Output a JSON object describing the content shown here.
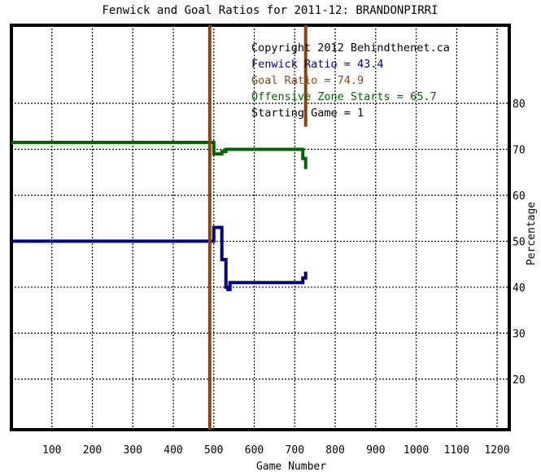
{
  "chart_data": {
    "type": "line",
    "title": "Fenwick and Goal Ratios for 2011-12: BRANDONPIRRI",
    "xlabel": "Game Number",
    "ylabel": "Percentage",
    "xlim": [
      0,
      1230
    ],
    "ylim": [
      9,
      97
    ],
    "xticks": [
      100,
      200,
      300,
      400,
      500,
      600,
      700,
      800,
      900,
      1000,
      1100,
      1200
    ],
    "yticks": [
      20,
      30,
      40,
      50,
      60,
      70,
      80
    ],
    "grid": true,
    "annotations": [
      {
        "text": "Copyright 2012 Behindthenet.ca",
        "color": "#000000"
      },
      {
        "text": "Fenwick Ratio = 43.4",
        "color": "#000080"
      },
      {
        "text": "Goal Ratio = 74.9",
        "color": "#8B4513"
      },
      {
        "text": "Offensive Zone Starts = 65.7",
        "color": "#006400"
      },
      {
        "text": "Starting Game = 1",
        "color": "#000000"
      }
    ],
    "series": [
      {
        "color": "#000080",
        "x": [
          0,
          480,
          480,
          500,
          500,
          520,
          520,
          530,
          530,
          535,
          535,
          540,
          540,
          545,
          545,
          720,
          720,
          727,
          727
        ],
        "y": [
          50,
          50,
          50,
          50,
          53,
          53,
          46,
          46,
          40,
          40,
          39.5,
          39.5,
          41,
          41,
          41,
          41,
          42,
          42,
          43.4
        ]
      },
      {
        "color": "#006400",
        "x": [
          0,
          480,
          480,
          500,
          500,
          520,
          520,
          530,
          530,
          540,
          540,
          720,
          720,
          727,
          727
        ],
        "y": [
          71.5,
          71.5,
          71.5,
          71.5,
          69,
          69,
          69.5,
          69.5,
          70,
          70,
          70,
          70,
          68,
          68,
          65.7
        ]
      },
      {
        "color": "#8B4513",
        "x": [
          490,
          490
        ],
        "y": [
          9,
          97
        ]
      },
      {
        "color": "#8B4513",
        "x": [
          727,
          727
        ],
        "y": [
          74.9,
          97
        ]
      }
    ]
  }
}
